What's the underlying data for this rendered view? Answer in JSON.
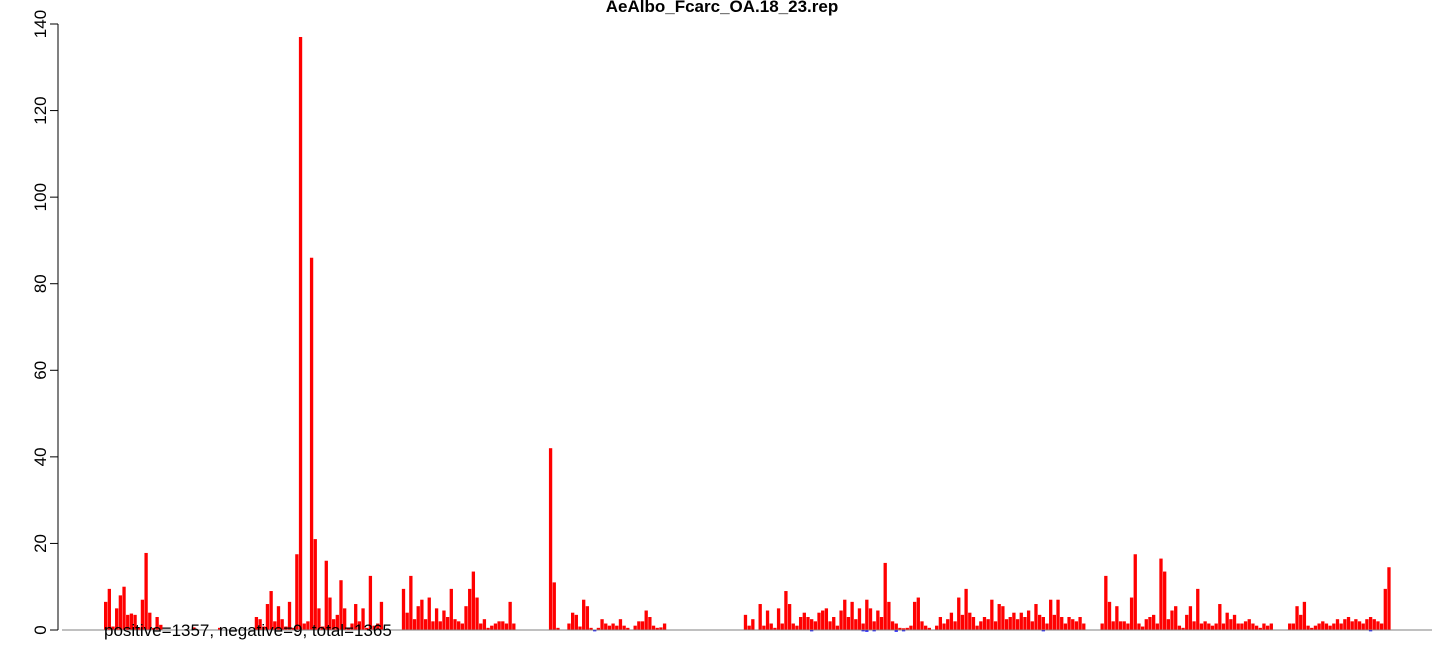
{
  "chart_data": {
    "type": "bar",
    "title": "AeAlbo_Fcarc_OA.18_23.rep",
    "xlabel": "",
    "ylabel": "",
    "ylim": [
      0,
      140
    ],
    "yticks": [
      0,
      20,
      40,
      60,
      80,
      100,
      120,
      140
    ],
    "grid": false,
    "legend": "none",
    "annotation": "positive=1357, negative=9, total=1365",
    "colors": {
      "positive": "#ff0000",
      "negative": "#0000ff",
      "baseline": "#808080"
    },
    "series": [
      {
        "name": "positive",
        "values": [
          6.5,
          9.5,
          0.8,
          5,
          8,
          10,
          3.5,
          3.8,
          3.5,
          0.6,
          7,
          17.8,
          4,
          0.5,
          3,
          1.2,
          0,
          0,
          0,
          0,
          0,
          0,
          0,
          0,
          0.6,
          0,
          0,
          0,
          0,
          0,
          0,
          0.5,
          0,
          0,
          0,
          0,
          0,
          0,
          0,
          0,
          0,
          3,
          2.5,
          0.8,
          6,
          9,
          2,
          5.5,
          2.5,
          0.8,
          6.5,
          0.5,
          17.5,
          137,
          1.5,
          2,
          86,
          21,
          5,
          0.8,
          16,
          7.5,
          2.5,
          3.5,
          11.5,
          5,
          0.5,
          1.5,
          6,
          2,
          5,
          0.5,
          12.5,
          1,
          1.5,
          6.5,
          0,
          0,
          0,
          0,
          0,
          9.5,
          4,
          12.5,
          2.5,
          5.5,
          7,
          2.5,
          7.5,
          2,
          5,
          2,
          4.5,
          3,
          9.5,
          2.5,
          2,
          1.5,
          5.5,
          9.5,
          13.5,
          7.5,
          1.5,
          2.5,
          0.5,
          1,
          1.5,
          2,
          2,
          1.5,
          6.5,
          1.5,
          0,
          0,
          0,
          0,
          0,
          0,
          0,
          0,
          0,
          42,
          11,
          0.5,
          0,
          0,
          1.5,
          4,
          3.5,
          0.8,
          7,
          5.5,
          0.5,
          0,
          0.5,
          2.5,
          1.5,
          1,
          1.5,
          1,
          2.5,
          1,
          0.5,
          0,
          1,
          2,
          2,
          4.5,
          3,
          1,
          0.5,
          0.6,
          1.5,
          0,
          0,
          0,
          0,
          0,
          0,
          0,
          0,
          0,
          0,
          0,
          0,
          0,
          0,
          0,
          0,
          0,
          0,
          0,
          0,
          0,
          3.5,
          1,
          2.5,
          0,
          6,
          1,
          4.5,
          1.5,
          0.5,
          5,
          1.5,
          9,
          6,
          1.5,
          1,
          3,
          4,
          3,
          2.5,
          2,
          4,
          4.5,
          5,
          2,
          3,
          1,
          4.5,
          7,
          3,
          6.5,
          2.5,
          5,
          1.5,
          7,
          5,
          2,
          4.5,
          3,
          15.5,
          6.5,
          2,
          1.5,
          0.5,
          0.4,
          0.5,
          1,
          6.5,
          7.5,
          2,
          1,
          0.5,
          0,
          1,
          3,
          1.5,
          2.5,
          4,
          2,
          7.5,
          3.5,
          9.5,
          4,
          3,
          1,
          2,
          3,
          2.5,
          7,
          2,
          6,
          5.5,
          2.5,
          3,
          4,
          2.5,
          4,
          3,
          4.5,
          2,
          6,
          3.5,
          3,
          1.5,
          7,
          3.5,
          7,
          3,
          1.5,
          3,
          2.5,
          2,
          3,
          1.5,
          0,
          0,
          0,
          0,
          1.5,
          12.5,
          6.5,
          2,
          5.5,
          2,
          2,
          1.5,
          7.5,
          17.5,
          1.5,
          0.8,
          2.5,
          3,
          3.5,
          1.5,
          16.5,
          13.5,
          2.5,
          4.5,
          5.5,
          1,
          0.5,
          3.5,
          5.5,
          2,
          9.5,
          1.5,
          2,
          1.5,
          1,
          1.5,
          6,
          1.5,
          4,
          2.5,
          3.5,
          1.5,
          1.5,
          2,
          2.5,
          1.5,
          1,
          0.5,
          1.5,
          1,
          1.5,
          0,
          0,
          0,
          0,
          1.5,
          1.5,
          5.5,
          3.5,
          6.5,
          1,
          0.5,
          1,
          1.5,
          2,
          1.5,
          1,
          1.5,
          2.5,
          1.5,
          2.5,
          3,
          2,
          2.5,
          2,
          1.5,
          2.5,
          3,
          2.5,
          2,
          1.5,
          9.5,
          14.5
        ]
      },
      {
        "name": "negative",
        "values": [
          0,
          0,
          0,
          0,
          0,
          0,
          0,
          0,
          0,
          0,
          0,
          0,
          0,
          0,
          0,
          0,
          0,
          0,
          0,
          0,
          0,
          0,
          0,
          0,
          0,
          0,
          0,
          0,
          0,
          0,
          0,
          0,
          0,
          0,
          0,
          0,
          0,
          0,
          0,
          0,
          0,
          0,
          0,
          0,
          0,
          0,
          0,
          0,
          0,
          0,
          0,
          0,
          0,
          0,
          0,
          0,
          0,
          0,
          0,
          0,
          0,
          0,
          0,
          0,
          0,
          0,
          0,
          0,
          0,
          0,
          0,
          0,
          0,
          0,
          0,
          0,
          0,
          0,
          0,
          0,
          0,
          0,
          0,
          0,
          0,
          0,
          0,
          0,
          0,
          0,
          0,
          0,
          0,
          0,
          0,
          0,
          0,
          0,
          0,
          0,
          0,
          0,
          0,
          0,
          0,
          0,
          0,
          0,
          0,
          0,
          0,
          0,
          0,
          0,
          0,
          0,
          0,
          0,
          0,
          0,
          0,
          0,
          0,
          0,
          0,
          0,
          0,
          0,
          0,
          0,
          0,
          0,
          0,
          0.3,
          0,
          0,
          0,
          0,
          0,
          0,
          0,
          0,
          0,
          0,
          0,
          0,
          0,
          0,
          0,
          0,
          0,
          0,
          0,
          0,
          0,
          0,
          0,
          0,
          0,
          0,
          0,
          0,
          0,
          0,
          0,
          0,
          0,
          0,
          0,
          0,
          0,
          0,
          0,
          0,
          0,
          0,
          0,
          0,
          0,
          0,
          0,
          0,
          0,
          0,
          0,
          0,
          0,
          0,
          0,
          0,
          0,
          0,
          0.3,
          0,
          0,
          0,
          0,
          0,
          0,
          0,
          0,
          0,
          0,
          0,
          0,
          0,
          0.3,
          0.4,
          0,
          0.3,
          0,
          0,
          0,
          0,
          0,
          0.4,
          0,
          0.3,
          0,
          0,
          0,
          0,
          0,
          0,
          0,
          0,
          0,
          0,
          0,
          0,
          0,
          0,
          0,
          0,
          0,
          0,
          0,
          0,
          0,
          0,
          0,
          0,
          0,
          0,
          0,
          0,
          0,
          0,
          0,
          0,
          0,
          0,
          0,
          0,
          0,
          0.3,
          0,
          0,
          0,
          0,
          0,
          0,
          0,
          0,
          0,
          0,
          0,
          0,
          0,
          0,
          0,
          0,
          0,
          0,
          0,
          0,
          0,
          0,
          0,
          0,
          0,
          0,
          0,
          0,
          0,
          0,
          0,
          0,
          0,
          0,
          0,
          0,
          0,
          0,
          0,
          0,
          0,
          0,
          0,
          0,
          0,
          0,
          0,
          0,
          0,
          0,
          0,
          0,
          0,
          0,
          0,
          0,
          0,
          0,
          0,
          0,
          0,
          0,
          0,
          0,
          0,
          0,
          0,
          0,
          0,
          0,
          0,
          0,
          0,
          0,
          0,
          0,
          0,
          0,
          0,
          0,
          0,
          0,
          0,
          0,
          0,
          0,
          0,
          0,
          0.3,
          0,
          0,
          0,
          0,
          0
        ]
      }
    ]
  }
}
